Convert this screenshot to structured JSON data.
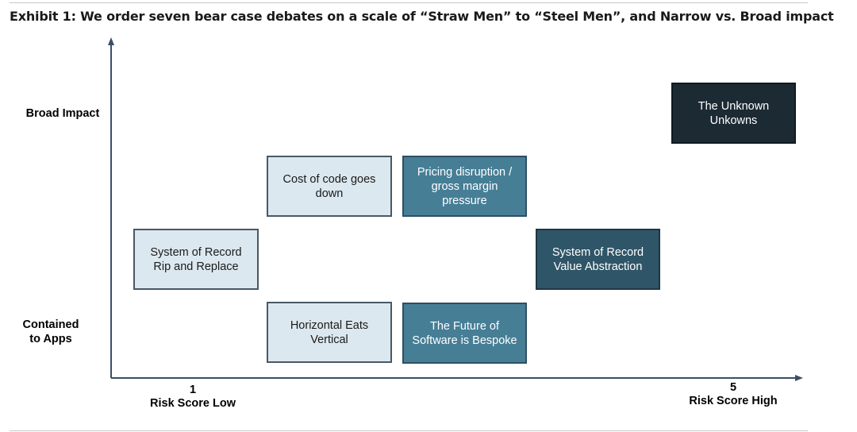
{
  "title": "Exhibit 1: We order seven bear case debates on a scale of “Straw Men” to “Steel Men”, and Narrow vs. Broad impact",
  "y_axis": {
    "top_label": "Broad Impact",
    "bottom_label": "Contained to Apps"
  },
  "x_axis": {
    "low_tick": "1",
    "low_label": "Risk Score Low",
    "high_tick": "5",
    "high_label": "Risk Score High"
  },
  "debates": [
    {
      "label": "The Unknown Unkowns",
      "shade": "darkest"
    },
    {
      "label": "Cost of code goes down",
      "shade": "light"
    },
    {
      "label": "Pricing disruption / gross margin pressure",
      "shade": "mid"
    },
    {
      "label": "System of Record Rip and Replace",
      "shade": "light"
    },
    {
      "label": "System of Record Value Abstraction",
      "shade": "dark"
    },
    {
      "label": "Horizontal Eats Vertical",
      "shade": "light"
    },
    {
      "label": "The Future of Software is Bespoke",
      "shade": "mid"
    }
  ],
  "colors": {
    "light": "#dce8ef",
    "mid": "#467e96",
    "dark": "#2f5568",
    "darkest": "#1c2a33",
    "axis": "#3c4e66"
  }
}
